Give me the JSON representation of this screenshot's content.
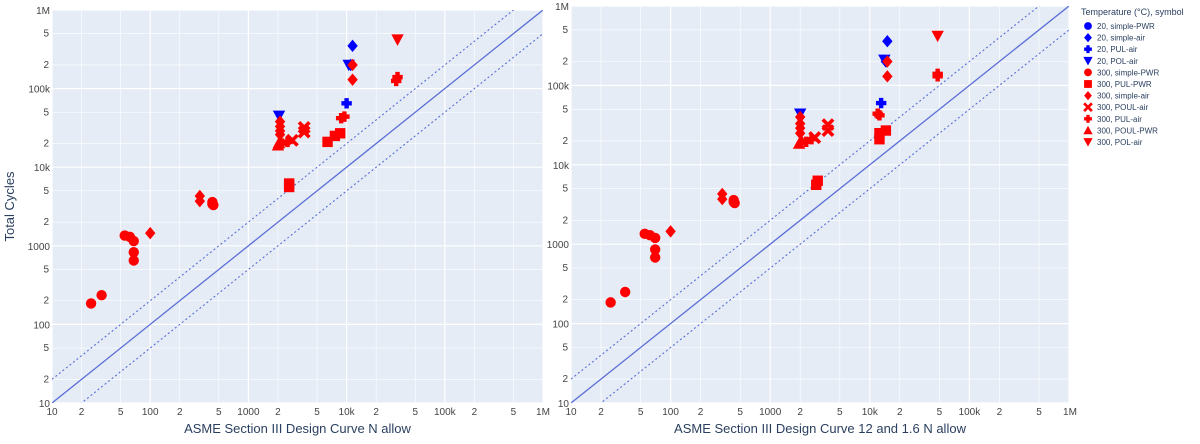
{
  "legend": {
    "title": "Temperature (°C), symbol",
    "items": [
      {
        "label": "20, simple-PWR",
        "color": "#0000ff",
        "symbol": "circle"
      },
      {
        "label": "20, simple-air",
        "color": "#0000ff",
        "symbol": "diamond"
      },
      {
        "label": "20, PUL-air",
        "color": "#0000ff",
        "symbol": "cross"
      },
      {
        "label": "20, POL-air",
        "color": "#0000ff",
        "symbol": "triangle-down"
      },
      {
        "label": "300, simple-PWR",
        "color": "#ff0000",
        "symbol": "circle"
      },
      {
        "label": "300, PUL-PWR",
        "color": "#ff0000",
        "symbol": "square"
      },
      {
        "label": "300, simple-air",
        "color": "#ff0000",
        "symbol": "diamond"
      },
      {
        "label": "300, POUL-air",
        "color": "#ff0000",
        "symbol": "x"
      },
      {
        "label": "300, PUL-air",
        "color": "#ff0000",
        "symbol": "cross"
      },
      {
        "label": "300, POUL-PWR",
        "color": "#ff0000",
        "symbol": "triangle-up"
      },
      {
        "label": "300, POL-air",
        "color": "#ff0000",
        "symbol": "triangle-down"
      }
    ]
  },
  "chart_data": [
    {
      "type": "scatter",
      "xlabel": "ASME Section III Design Curve N allow",
      "ylabel": "Total Cycles",
      "xscale": "log",
      "yscale": "log",
      "xlim": [
        10,
        1000000
      ],
      "ylim": [
        10,
        1000000
      ],
      "grid": true,
      "major_ticks": [
        "10",
        "100",
        "1000",
        "10k",
        "100k",
        "1M"
      ],
      "minor_tick_labels": [
        "2",
        "5"
      ],
      "reference_lines": [
        {
          "name": "",
          "style": "solid",
          "factor": 1
        },
        {
          "name": "",
          "style": "dotted",
          "factor": 2
        },
        {
          "name": "",
          "style": "dotted",
          "factor": 0.5
        }
      ],
      "series": [
        {
          "legend_index": 0,
          "points": []
        },
        {
          "legend_index": 1,
          "points": [
            [
              11500,
              350000
            ],
            [
              11000,
              200000
            ]
          ]
        },
        {
          "legend_index": 2,
          "points": [
            [
              10000,
              65000
            ]
          ]
        },
        {
          "legend_index": 3,
          "points": [
            [
              10500,
              200000
            ],
            [
              2050,
              45000
            ]
          ]
        },
        {
          "legend_index": 4,
          "points": [
            [
              25,
              185
            ],
            [
              32,
              235
            ],
            [
              55,
              1350
            ],
            [
              62,
              1300
            ],
            [
              68,
              1150
            ],
            [
              68,
              830
            ],
            [
              68,
              650
            ],
            [
              430,
              3600
            ],
            [
              440,
              3300
            ],
            [
              430,
              3400
            ]
          ]
        },
        {
          "legend_index": 5,
          "points": [
            [
              2600,
              6200
            ],
            [
              2600,
              5600
            ],
            [
              6400,
              21000
            ],
            [
              7600,
              25000
            ],
            [
              8600,
              27000
            ]
          ]
        },
        {
          "legend_index": 6,
          "points": [
            [
              100,
              1450
            ],
            [
              320,
              4300
            ],
            [
              320,
              3700
            ],
            [
              2100,
              38000
            ],
            [
              2100,
              33000
            ],
            [
              2100,
              29000
            ],
            [
              2100,
              26000
            ],
            [
              11500,
              200000
            ],
            [
              11500,
              130000
            ]
          ]
        },
        {
          "legend_index": 7,
          "points": [
            [
              2800,
              22000
            ],
            [
              3700,
              32000
            ],
            [
              3700,
              28000
            ]
          ]
        },
        {
          "legend_index": 8,
          "points": [
            [
              2500,
              21000
            ],
            [
              2200,
              20000
            ],
            [
              9500,
              44000
            ],
            [
              8800,
              42000
            ],
            [
              32000,
              125000
            ],
            [
              33000,
              140000
            ]
          ]
        },
        {
          "legend_index": 9,
          "points": [
            [
              2000,
              19000
            ],
            [
              2050,
              20500
            ]
          ]
        },
        {
          "legend_index": 10,
          "points": [
            [
              33000,
              420000
            ]
          ]
        }
      ]
    },
    {
      "type": "scatter",
      "xlabel": "ASME Section III Design Curve 12 and 1.6 N allow",
      "ylabel": "",
      "xscale": "log",
      "yscale": "log",
      "xlim": [
        10,
        1000000
      ],
      "ylim": [
        10,
        1000000
      ],
      "grid": true,
      "major_ticks": [
        "10",
        "100",
        "1000",
        "10k",
        "100k",
        "1M"
      ],
      "minor_tick_labels": [
        "2",
        "5"
      ],
      "reference_lines": [
        {
          "name": "",
          "style": "solid",
          "factor": 1
        },
        {
          "name": "",
          "style": "dotted",
          "factor": 2
        },
        {
          "name": "",
          "style": "dotted",
          "factor": 0.5
        }
      ],
      "series": [
        {
          "legend_index": 0,
          "points": []
        },
        {
          "legend_index": 1,
          "points": [
            [
              15000,
              360000
            ],
            [
              14500,
              200000
            ]
          ]
        },
        {
          "legend_index": 2,
          "points": [
            [
              13000,
              60000
            ]
          ]
        },
        {
          "legend_index": 3,
          "points": [
            [
              14000,
              210000
            ],
            [
              2000,
              44000
            ]
          ]
        },
        {
          "legend_index": 4,
          "points": [
            [
              25,
              185
            ],
            [
              35,
              250
            ],
            [
              55,
              1350
            ],
            [
              62,
              1300
            ],
            [
              70,
              1200
            ],
            [
              70,
              860
            ],
            [
              70,
              680
            ],
            [
              430,
              3600
            ],
            [
              440,
              3300
            ],
            [
              430,
              3400
            ]
          ]
        },
        {
          "legend_index": 5,
          "points": [
            [
              3000,
              6300
            ],
            [
              2900,
              5600
            ],
            [
              12500,
              21000
            ],
            [
              12500,
              25000
            ],
            [
              14500,
              27000
            ]
          ]
        },
        {
          "legend_index": 6,
          "points": [
            [
              100,
              1450
            ],
            [
              330,
              4300
            ],
            [
              330,
              3700
            ],
            [
              2000,
              40000
            ],
            [
              2000,
              33000
            ],
            [
              2000,
              29000
            ],
            [
              2000,
              25000
            ],
            [
              15000,
              200000
            ],
            [
              15000,
              130000
            ]
          ]
        },
        {
          "legend_index": 7,
          "points": [
            [
              2800,
              22000
            ],
            [
              3800,
              32000
            ],
            [
              3800,
              27000
            ]
          ]
        },
        {
          "legend_index": 8,
          "points": [
            [
              2600,
              21000
            ],
            [
              2300,
              19500
            ],
            [
              12000,
              44000
            ],
            [
              12500,
              42000
            ],
            [
              48000,
              130000
            ],
            [
              48000,
              140000
            ]
          ]
        },
        {
          "legend_index": 9,
          "points": [
            [
              1950,
              18500
            ],
            [
              2050,
              20500
            ]
          ]
        },
        {
          "legend_index": 10,
          "points": [
            [
              48000,
              420000
            ]
          ]
        }
      ]
    }
  ]
}
